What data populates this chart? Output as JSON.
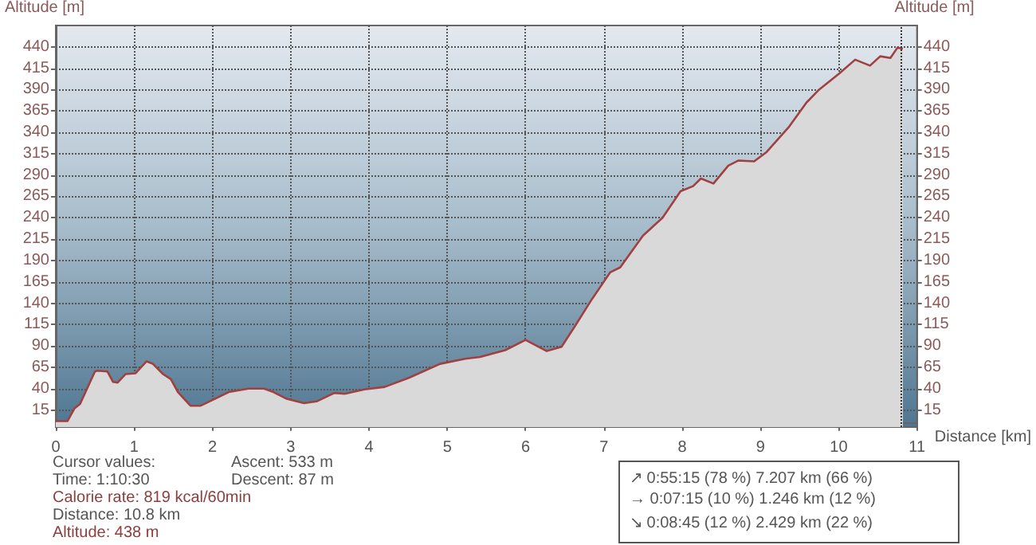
{
  "chart_data": {
    "type": "area",
    "ylabel": "Altitude [m]",
    "y2label": "Altitude [m]",
    "xlabel": "Distance [km]",
    "x": [
      0,
      0.15,
      0.24,
      0.31,
      0.5,
      0.53,
      0.66,
      0.73,
      0.79,
      0.89,
      1.02,
      1.16,
      1.24,
      1.37,
      1.47,
      1.56,
      1.72,
      1.85,
      2.01,
      2.21,
      2.46,
      2.66,
      2.78,
      2.95,
      3.17,
      3.33,
      3.56,
      3.69,
      3.94,
      4.2,
      4.52,
      4.91,
      5.23,
      5.42,
      5.74,
      6.0,
      6.27,
      6.46,
      6.63,
      6.85,
      7.08,
      7.21,
      7.5,
      7.75,
      7.98,
      8.14,
      8.24,
      8.4,
      8.59,
      8.72,
      8.92,
      9.08,
      9.37,
      9.59,
      9.75,
      10.01,
      10.21,
      10.4,
      10.53,
      10.66,
      10.75,
      10.82
    ],
    "series": [
      {
        "color": "#a04040",
        "values": [
          2,
          2,
          17,
          22,
          60,
          61,
          60,
          48,
          47,
          57,
          58,
          72,
          69,
          57,
          51,
          36,
          20,
          20,
          27,
          36,
          40,
          40,
          36,
          28,
          23,
          25,
          35,
          34,
          39,
          42,
          53,
          69,
          75,
          77,
          85,
          97,
          84,
          89,
          113,
          145,
          176,
          182,
          219,
          240,
          271,
          277,
          286,
          280,
          301,
          307,
          306,
          317,
          347,
          375,
          390,
          409,
          425,
          418,
          429,
          427,
          439,
          438
        ]
      }
    ],
    "xlim": [
      0,
      11
    ],
    "xticks": [
      0,
      1,
      2,
      3,
      4,
      5,
      6,
      7,
      8,
      9,
      10,
      11
    ],
    "ylim": [
      -5,
      465
    ],
    "yticks": [
      15,
      40,
      65,
      90,
      115,
      140,
      165,
      190,
      215,
      240,
      265,
      290,
      315,
      340,
      365,
      390,
      415,
      440
    ],
    "y2lim": [
      -5,
      465
    ],
    "y2ticks": [
      15,
      40,
      65,
      90,
      115,
      140,
      165,
      190,
      215,
      240,
      265,
      290,
      315,
      340,
      365,
      390,
      415,
      440
    ],
    "ref_lines": [
      {
        "axis": "x",
        "value": 10.8,
        "color": "#333333",
        "line_style": "dotted"
      }
    ],
    "grid": true,
    "marker": "none",
    "line_style": "solid",
    "annotations": [
      "Cursor values:",
      "Time: 1:10:30",
      "Calorie rate: 819 kcal/60min",
      "Distance: 10.8 km",
      "Altitude: 438 m",
      "Ascent: 533 m",
      "Descent: 87 m",
      "↗ 0:55:15 (78 %) 7.207 km (66 %)",
      "→ 0:07:15 (10 %) 1.246 km (12 %)",
      "↘ 0:08:45 (12 %) 2.429 km (22 %)"
    ]
  }
}
